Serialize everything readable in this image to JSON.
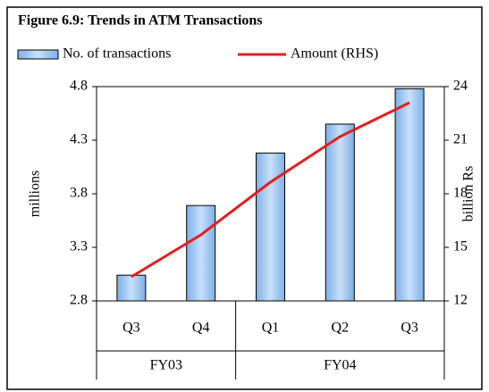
{
  "chart_data": {
    "type": "bar_line",
    "title": "Figure 6.9: Trends in ATM Transactions",
    "categories": [
      "Q3",
      "Q4",
      "Q1",
      "Q2",
      "Q3"
    ],
    "groups": [
      {
        "name": "FY03",
        "span": 2
      },
      {
        "name": "FY04",
        "span": 3
      }
    ],
    "series": [
      {
        "name": "No. of transactions",
        "type": "bar",
        "color": "#9ec8f2",
        "axis": "y",
        "values": [
          3.04,
          3.69,
          4.18,
          4.45,
          4.78
        ]
      },
      {
        "name": "Amount (RHS)",
        "type": "line",
        "color": "#e41e1e",
        "axis": "y2",
        "values": [
          13.35,
          15.7,
          18.65,
          21.2,
          23.1
        ]
      }
    ],
    "ylabel": "millions",
    "y2label": "billion Rs",
    "ylim": [
      2.8,
      4.8
    ],
    "yticks": [
      2.8,
      3.3,
      3.8,
      4.3,
      4.8
    ],
    "y2lim": [
      12,
      24
    ],
    "y2ticks": [
      12,
      15,
      18,
      21,
      24
    ],
    "legend": "top"
  }
}
